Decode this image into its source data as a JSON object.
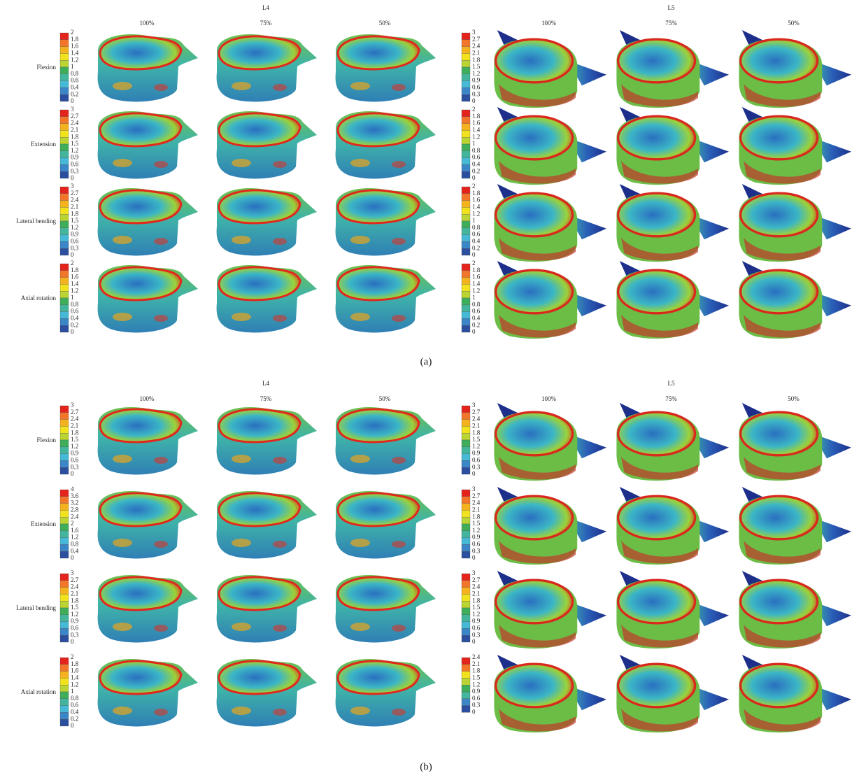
{
  "panels": [
    {
      "label": "(a)",
      "row_labels": [
        "Flexion",
        "Extension",
        "Lateral bending",
        "Axial rotation"
      ],
      "groups": [
        {
          "title": "L4",
          "columns": [
            "100%",
            "75%",
            "50%"
          ],
          "legends": [
            [
              2,
              1.8,
              1.6,
              1.4,
              1.2,
              1,
              0.8,
              0.6,
              0.4,
              0.2,
              0
            ],
            [
              3,
              2.7,
              2.4,
              2.1,
              1.8,
              1.5,
              1.2,
              0.9,
              0.6,
              0.3,
              0
            ],
            [
              3,
              2.7,
              2.4,
              2.1,
              1.8,
              1.5,
              1.2,
              0.9,
              0.6,
              0.3,
              0
            ],
            [
              2,
              1.8,
              1.6,
              1.4,
              1.2,
              1,
              0.8,
              0.6,
              0.4,
              0.2,
              0
            ]
          ]
        },
        {
          "title": "L5",
          "columns": [
            "100%",
            "75%",
            "50%"
          ],
          "legends": [
            [
              3,
              2.7,
              2.4,
              2.1,
              1.8,
              1.5,
              1.2,
              0.9,
              0.6,
              0.3,
              0
            ],
            [
              2,
              1.8,
              1.6,
              1.4,
              1.2,
              1,
              0.8,
              0.6,
              0.4,
              0.2,
              0
            ],
            [
              2,
              1.8,
              1.6,
              1.4,
              1.2,
              1,
              0.8,
              0.6,
              0.4,
              0.2,
              0
            ],
            [
              2,
              1.8,
              1.6,
              1.4,
              1.2,
              1,
              0.8,
              0.6,
              0.4,
              0.2,
              0
            ]
          ]
        }
      ]
    },
    {
      "label": "(b)",
      "row_labels": [
        "Flexion",
        "Extension",
        "Lateral bending",
        "Axial rotation"
      ],
      "groups": [
        {
          "title": "L4",
          "columns": [
            "100%",
            "75%",
            "50%"
          ],
          "legends": [
            [
              3,
              2.7,
              2.4,
              2.1,
              1.8,
              1.5,
              1.2,
              0.9,
              0.6,
              0.3,
              0
            ],
            [
              4,
              3.6,
              3.2,
              2.8,
              2.4,
              2,
              1.6,
              1.2,
              0.8,
              0.4,
              0
            ],
            [
              3,
              2.7,
              2.4,
              2.1,
              1.8,
              1.5,
              1.2,
              0.9,
              0.6,
              0.3,
              0
            ],
            [
              2,
              1.8,
              1.6,
              1.4,
              1.2,
              1,
              0.8,
              0.6,
              0.4,
              0.2,
              0
            ]
          ]
        },
        {
          "title": "L5",
          "columns": [
            "100%",
            "75%",
            "50%"
          ],
          "legends": [
            [
              3,
              2.7,
              2.4,
              2.1,
              1.8,
              1.5,
              1.2,
              0.9,
              0.6,
              0.3,
              0
            ],
            [
              3,
              2.7,
              2.4,
              2.1,
              1.8,
              1.5,
              1.2,
              0.9,
              0.6,
              0.3,
              0
            ],
            [
              3,
              2.7,
              2.4,
              2.1,
              1.8,
              1.5,
              1.2,
              0.9,
              0.6,
              0.3,
              0
            ],
            [
              2.4,
              2.1,
              1.8,
              1.5,
              1.2,
              0.9,
              0.6,
              0.3,
              0
            ]
          ]
        }
      ]
    }
  ]
}
